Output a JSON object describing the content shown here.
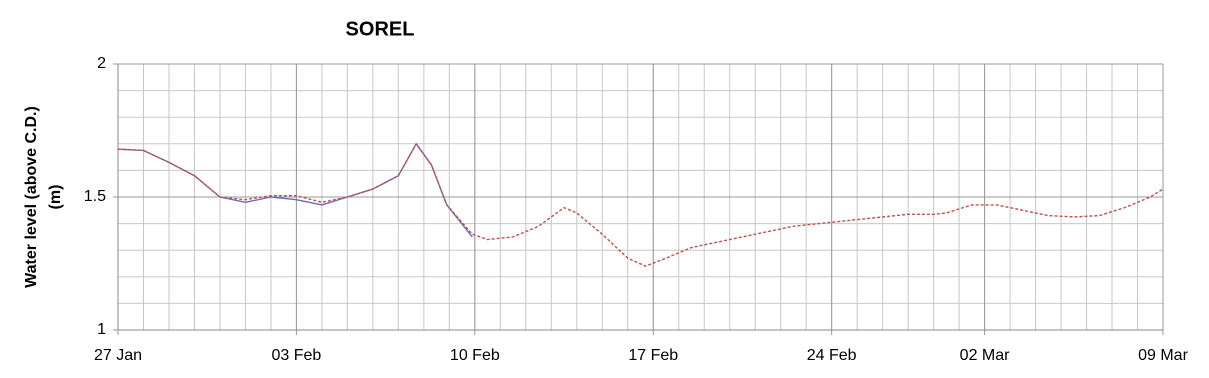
{
  "chart_data": {
    "type": "line",
    "title": "SOREL",
    "y_label": [
      "Water level (above C.D.)",
      "(m)"
    ],
    "xlim": [
      0,
      41
    ],
    "xticks": [
      {
        "value": 0,
        "label": "27 Jan"
      },
      {
        "value": 7,
        "label": "03 Feb"
      },
      {
        "value": 14,
        "label": "10 Feb"
      },
      {
        "value": 21,
        "label": "17 Feb"
      },
      {
        "value": 28,
        "label": "24 Feb"
      },
      {
        "value": 34,
        "label": "02 Mar"
      },
      {
        "value": 41,
        "label": "09 Mar"
      }
    ],
    "ylim": [
      1,
      2
    ],
    "yticks": [
      1,
      1.5,
      2
    ],
    "x_minor_step": 1,
    "y_minor_step": 0.1,
    "grid": true,
    "series": [
      {
        "color": "#6b6bbf",
        "dash": false,
        "x": [
          0,
          1,
          2,
          3,
          4,
          5,
          6,
          7,
          8,
          9,
          10,
          11,
          11.7,
          12.3,
          12.9,
          13.9
        ],
        "values": [
          1.68,
          1.675,
          1.63,
          1.58,
          1.5,
          1.48,
          1.5,
          1.49,
          1.47,
          1.5,
          1.53,
          1.58,
          1.7,
          1.62,
          1.47,
          1.35
        ]
      },
      {
        "color": "#c0504d",
        "dash": true,
        "x": [
          0,
          1,
          2,
          3,
          4,
          5,
          6,
          7,
          8,
          9,
          10,
          11,
          11.7,
          12.3,
          12.9,
          13.9,
          14.5,
          15.5,
          16.5,
          17.5,
          18,
          19,
          20,
          20.7,
          21.5,
          22.5,
          23.5,
          24.5,
          25.5,
          26.5,
          28,
          29.5,
          31,
          32,
          32.5,
          33.5,
          34.5,
          35.5,
          36.5,
          37.5,
          38.5,
          39.5,
          40.5,
          41
        ],
        "values": [
          1.68,
          1.675,
          1.63,
          1.58,
          1.5,
          1.49,
          1.505,
          1.505,
          1.48,
          1.5,
          1.53,
          1.58,
          1.7,
          1.62,
          1.47,
          1.36,
          1.34,
          1.35,
          1.39,
          1.46,
          1.44,
          1.36,
          1.27,
          1.24,
          1.27,
          1.31,
          1.33,
          1.35,
          1.37,
          1.39,
          1.405,
          1.42,
          1.435,
          1.435,
          1.44,
          1.47,
          1.47,
          1.45,
          1.43,
          1.425,
          1.43,
          1.46,
          1.5,
          1.53
        ]
      }
    ]
  }
}
